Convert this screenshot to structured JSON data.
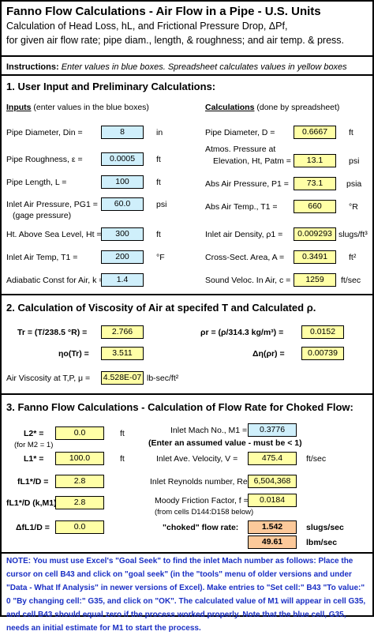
{
  "header": {
    "title": "Fanno Flow Calculations  - Air Flow in a Pipe - U.S. Units",
    "line1": "Calculation of Head Loss, hL, and Frictional Pressure Drop, ΔPf,",
    "line2": "for given air flow rate; pipe diam., length, & roughness; and air temp. & press."
  },
  "instructions": {
    "label": "Instructions:",
    "text": "Enter values in blue boxes.  Spreadsheet calculates values in yellow boxes"
  },
  "section1": {
    "title": "1. User Input and Preliminary Calculations:",
    "inputs_header": "Inputs",
    "inputs_note": "(enter values in the blue boxes)",
    "calcs_header": "Calculations",
    "calcs_note": "(done by spreadsheet)",
    "inputs": [
      {
        "label": "Pipe Diameter, Din =",
        "value": "8",
        "unit": "in"
      },
      {
        "label": "Pipe Roughness, ε =",
        "value": "0.0005",
        "unit": "ft"
      },
      {
        "label": "Pipe Length, L =",
        "value": "100",
        "unit": "ft"
      },
      {
        "label": "Inlet Air Pressure, PG1 =",
        "value": "60.0",
        "unit": "psi"
      },
      {
        "label": "Ht. Above Sea Level,  Ht  =",
        "value": "300",
        "unit": "ft"
      },
      {
        "label": "Inlet Air Temp, T1 =",
        "value": "200",
        "unit": "°F"
      },
      {
        "label": "Adiabatic Const for Air, k =",
        "value": "1.4",
        "unit": ""
      }
    ],
    "gage_note": "(gage pressure)",
    "atm_line1": "Atmos. Pressure at",
    "calcs": [
      {
        "label": "Pipe Diameter, D =",
        "value": "0.6667",
        "unit": "ft"
      },
      {
        "label": "Elevation, Ht, Patm =",
        "value": "13.1",
        "unit": "psi"
      },
      {
        "label": "Abs Air Pressure, P1 =",
        "value": "73.1",
        "unit": "psia"
      },
      {
        "label": "Abs Air Temp., T1 =",
        "value": "660",
        "unit": "°R"
      },
      {
        "label": "Inlet air Density, ρ1 =",
        "value": "0.009293",
        "unit": "slugs/ft³"
      },
      {
        "label": "Cross-Sect. Area, A =",
        "value": "0.3491",
        "unit": "ft²"
      },
      {
        "label": "Sound Veloc. In Air, c =",
        "value": "1259",
        "unit": "ft/sec"
      }
    ]
  },
  "section2": {
    "title": "2. Calculation of Viscosity of Air at specifed T and Calculated ρ.",
    "tr_label": "Tr =  (T/238.5 °R) =",
    "tr_value": "2.766",
    "rhor_label": "ρr =  (ρ/314.3 kg/m³) =",
    "rhor_value": "0.0152",
    "eta_label": "ηo(Tr) =",
    "eta_value": "3.511",
    "deta_label": "Δη(ρr) =",
    "deta_value": "0.00739",
    "visc_label": "Air Viscosity at T,P,  μ =",
    "visc_value": "4.528E-07",
    "visc_unit": "lb-sec/ft²"
  },
  "section3": {
    "title": "3. Fanno Flow Calculations - Calculation of Flow Rate for Choked Flow:",
    "l2_label": "L2* =",
    "l2_value": "0.0",
    "l2_unit": "ft",
    "m2_note": "(for M2 = 1)",
    "l1_label": "L1* =",
    "l1_value": "100.0",
    "l1_unit": "ft",
    "fl1d_label": "fL1*/D =",
    "fl1d_value": "2.8",
    "fl1dk_label": "fL1*/D (k,M1) =",
    "fl1dk_value": "2.8",
    "dfl_label": "ΔfL1/D =",
    "dfl_value": "0.0",
    "mach_label": "Inlet Mach No., M1 =",
    "mach_value": "0.3776",
    "assumed_note": "(Enter an assumed value - must be < 1)",
    "vel_label": "Inlet Ave. Velocity, V =",
    "vel_value": "475.4",
    "vel_unit": "ft/sec",
    "re_label": "Inlet Reynolds number, Re =",
    "re_value": "6,504,368",
    "fric_label": "Moody Friction Factor, f =",
    "fric_value": "0.0184",
    "fric_note": "(from cells D144:D158 below)",
    "choked_label": "\"choked\" flow rate:",
    "flow1_value": "1.542",
    "flow1_unit": "slugs/sec",
    "flow2_value": "49.61",
    "flow2_unit": "lbm/sec"
  },
  "note": "NOTE:  You must use Excel's \"Goal Seek\" to find the inlet Mach number as follows:  Place the cursor on cell B43 and click on \"goal seek\" (in the \"tools\" menu of older versions and under \"Data - What If Analysis\" in newer versions of Excel).  Make entries to \"Set cell:\"  B43  \"To value:\"  0  \"By changing cell:\"  G35, and click on \"OK\".  The calculated value of M1 will appear in cell G35, and cell B43 should equal zero if the process worked properly.  Note that the blue cell, G35, needs an initial estimate for M1 to start the process."
}
